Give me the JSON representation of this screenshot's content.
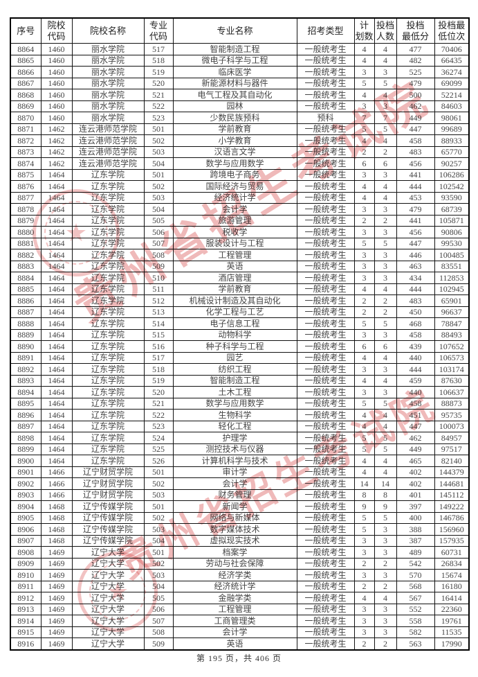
{
  "page": {
    "footer": "第 195 页，共 406 页"
  },
  "watermark": {
    "text": "贵州省招生考试院",
    "color": "#d65050",
    "star_icon": "★"
  },
  "table": {
    "headers": [
      [
        "序号"
      ],
      [
        "院校",
        "代码"
      ],
      [
        "院校名称"
      ],
      [
        "专业",
        "代码"
      ],
      [
        "专业名称"
      ],
      [
        "招考类型"
      ],
      [
        "计",
        "划数"
      ],
      [
        "投档",
        "人数"
      ],
      [
        "投档",
        "最低分"
      ],
      [
        "投档最",
        "低位次"
      ]
    ],
    "rows": [
      [
        "8864",
        "1460",
        "丽水学院",
        "517",
        "智能制造工程",
        "一般统考生",
        "4",
        "4",
        "477",
        "70406"
      ],
      [
        "8865",
        "1460",
        "丽水学院",
        "518",
        "微电子科学与工程",
        "一般统考生",
        "4",
        "4",
        "482",
        "66435"
      ],
      [
        "8866",
        "1460",
        "丽水学院",
        "519",
        "临床医学",
        "一般统考生",
        "3",
        "3",
        "525",
        "36274"
      ],
      [
        "8867",
        "1460",
        "丽水学院",
        "520",
        "新能源材料与器件",
        "一般统考生",
        "5",
        "5",
        "479",
        "69099"
      ],
      [
        "8868",
        "1460",
        "丽水学院",
        "521",
        "电气工程及其自动化",
        "一般统考生",
        "4",
        "4",
        "500",
        "52214"
      ],
      [
        "8869",
        "1460",
        "丽水学院",
        "522",
        "园林",
        "一般统考生",
        "3",
        "3",
        "462",
        "84603"
      ],
      [
        "8870",
        "1460",
        "丽水学院",
        "523",
        "少数民族预科",
        "预科",
        "7",
        "7",
        "449",
        "98061"
      ],
      [
        "8871",
        "1462",
        "连云港师范学院",
        "501",
        "学前教育",
        "一般统考生",
        "5",
        "5",
        "447",
        "99689"
      ],
      [
        "8872",
        "1462",
        "连云港师范学院",
        "502",
        "小学教育",
        "一般统考生",
        "4",
        "4",
        "458",
        "88933"
      ],
      [
        "8873",
        "1462",
        "连云港师范学院",
        "503",
        "汉语言文学",
        "一般统考生",
        "2",
        "2",
        "483",
        "65770"
      ],
      [
        "8874",
        "1462",
        "连云港师范学院",
        "504",
        "数学与应用数学",
        "一般统考生",
        "6",
        "6",
        "456",
        "90257"
      ],
      [
        "8875",
        "1464",
        "辽东学院",
        "501",
        "跨境电子商务",
        "一般统考生",
        "3",
        "3",
        "441",
        "106286"
      ],
      [
        "8876",
        "1464",
        "辽东学院",
        "502",
        "国际经济与贸易",
        "一般统考生",
        "4",
        "4",
        "444",
        "102542"
      ],
      [
        "8877",
        "1464",
        "辽东学院",
        "503",
        "经济统计学",
        "一般统考生",
        "4",
        "4",
        "453",
        "93590"
      ],
      [
        "8878",
        "1464",
        "辽东学院",
        "504",
        "会计学",
        "一般统考生",
        "3",
        "3",
        "479",
        "68739"
      ],
      [
        "8879",
        "1464",
        "辽东学院",
        "505",
        "旅游管理",
        "一般统考生",
        "2",
        "2",
        "441",
        "105871"
      ],
      [
        "8880",
        "1464",
        "辽东学院",
        "506",
        "税收学",
        "一般统考生",
        "3",
        "3",
        "456",
        "90806"
      ],
      [
        "8881",
        "1464",
        "辽东学院",
        "507",
        "服装设计与工程",
        "一般统考生",
        "5",
        "5",
        "447",
        "99530"
      ],
      [
        "8882",
        "1464",
        "辽东学院",
        "508",
        "工程管理",
        "一般统考生",
        "3",
        "3",
        "446",
        "100485"
      ],
      [
        "8883",
        "1464",
        "辽东学院",
        "509",
        "英语",
        "一般统考生",
        "3",
        "3",
        "463",
        "83551"
      ],
      [
        "8884",
        "1464",
        "辽东学院",
        "510",
        "酒店管理",
        "一般统考生",
        "3",
        "3",
        "434",
        "112853"
      ],
      [
        "8885",
        "1464",
        "辽东学院",
        "511",
        "学前教育",
        "一般统考生",
        "4",
        "4",
        "444",
        "102945"
      ],
      [
        "8886",
        "1464",
        "辽东学院",
        "512",
        "机械设计制造及其自动化",
        "一般统考生",
        "2",
        "2",
        "483",
        "65901"
      ],
      [
        "8887",
        "1464",
        "辽东学院",
        "513",
        "化学工程与工艺",
        "一般统考生",
        "2",
        "2",
        "450",
        "96637"
      ],
      [
        "8888",
        "1464",
        "辽东学院",
        "514",
        "电子信息工程",
        "一般统考生",
        "5",
        "5",
        "468",
        "78847"
      ],
      [
        "8889",
        "1464",
        "辽东学院",
        "515",
        "动物科学",
        "一般统考生",
        "3",
        "3",
        "458",
        "88493"
      ],
      [
        "8890",
        "1464",
        "辽东学院",
        "516",
        "种子科学与工程",
        "一般统考生",
        "6",
        "6",
        "439",
        "107652"
      ],
      [
        "8891",
        "1464",
        "辽东学院",
        "517",
        "园艺",
        "一般统考生",
        "4",
        "4",
        "440",
        "106573"
      ],
      [
        "8892",
        "1464",
        "辽东学院",
        "518",
        "纺织工程",
        "一般统考生",
        "3",
        "3",
        "444",
        "103174"
      ],
      [
        "8893",
        "1464",
        "辽东学院",
        "519",
        "智能制造工程",
        "一般统考生",
        "4",
        "4",
        "459",
        "87630"
      ],
      [
        "8894",
        "1464",
        "辽东学院",
        "520",
        "土木工程",
        "一般统考生",
        "3",
        "3",
        "440",
        "106637"
      ],
      [
        "8895",
        "1464",
        "辽东学院",
        "521",
        "数学与应用数学",
        "一般统考生",
        "5",
        "5",
        "458",
        "88873"
      ],
      [
        "8896",
        "1464",
        "辽东学院",
        "522",
        "生物科学",
        "一般统考生",
        "4",
        "4",
        "451",
        "95735"
      ],
      [
        "8897",
        "1464",
        "辽东学院",
        "523",
        "轻化工程",
        "一般统考生",
        "4",
        "4",
        "447",
        "100073"
      ],
      [
        "8898",
        "1464",
        "辽东学院",
        "524",
        "护理学",
        "一般统考生",
        "5",
        "5",
        "462",
        "84957"
      ],
      [
        "8899",
        "1464",
        "辽东学院",
        "525",
        "测控技术与仪器",
        "一般统考生",
        "5",
        "5",
        "449",
        "97517"
      ],
      [
        "8900",
        "1464",
        "辽东学院",
        "526",
        "计算机科学与技术",
        "一般统考生",
        "4",
        "4",
        "465",
        "82140"
      ],
      [
        "8901",
        "1466",
        "辽宁财贸学院",
        "501",
        "审计学",
        "一般统考生",
        "4",
        "4",
        "402",
        "144379"
      ],
      [
        "8902",
        "1466",
        "辽宁财贸学院",
        "502",
        "会计学",
        "一般统考生",
        "14",
        "14",
        "402",
        "144681"
      ],
      [
        "8903",
        "1466",
        "辽宁财贸学院",
        "503",
        "财务管理",
        "一般统考生",
        "8",
        "8",
        "401",
        "145112"
      ],
      [
        "8904",
        "1468",
        "辽宁传媒学院",
        "501",
        "新闻学",
        "一般统考生",
        "9",
        "9",
        "397",
        "149222"
      ],
      [
        "8905",
        "1468",
        "辽宁传媒学院",
        "502",
        "网络与新媒体",
        "一般统考生",
        "5",
        "5",
        "400",
        "146786"
      ],
      [
        "8906",
        "1468",
        "辽宁传媒学院",
        "503",
        "数字媒体技术",
        "一般统考生",
        "5",
        "3",
        "388",
        "156960"
      ],
      [
        "8907",
        "1468",
        "辽宁传媒学院",
        "504",
        "虚拟现实技术",
        "一般统考生",
        "3",
        "3",
        "387",
        "157935"
      ],
      [
        "8908",
        "1469",
        "辽宁大学",
        "501",
        "档案学",
        "一般统考生",
        "3",
        "3",
        "489",
        "60731"
      ],
      [
        "8909",
        "1469",
        "辽宁大学",
        "502",
        "劳动与社会保障",
        "一般统考生",
        "2",
        "2",
        "542",
        "26834"
      ],
      [
        "8910",
        "1469",
        "辽宁大学",
        "503",
        "经济学类",
        "一般统考生",
        "3",
        "3",
        "570",
        "15674"
      ],
      [
        "8911",
        "1469",
        "辽宁大学",
        "504",
        "经济统计学",
        "一般统考生",
        "2",
        "2",
        "568",
        "16180"
      ],
      [
        "8912",
        "1469",
        "辽宁大学",
        "505",
        "金融学类",
        "一般统考生",
        "4",
        "4",
        "567",
        "16414"
      ],
      [
        "8913",
        "1469",
        "辽宁大学",
        "506",
        "工程管理",
        "一般统考生",
        "3",
        "3",
        "552",
        "22360"
      ],
      [
        "8914",
        "1469",
        "辽宁大学",
        "507",
        "工商管理类",
        "一般统考生",
        "3",
        "3",
        "558",
        "19761"
      ],
      [
        "8915",
        "1469",
        "辽宁大学",
        "508",
        "会计学",
        "一般统考生",
        "3",
        "3",
        "582",
        "11535"
      ],
      [
        "8916",
        "1469",
        "辽宁大学",
        "509",
        "英语",
        "一般统考生",
        "2",
        "2",
        "563",
        "17990"
      ]
    ]
  }
}
